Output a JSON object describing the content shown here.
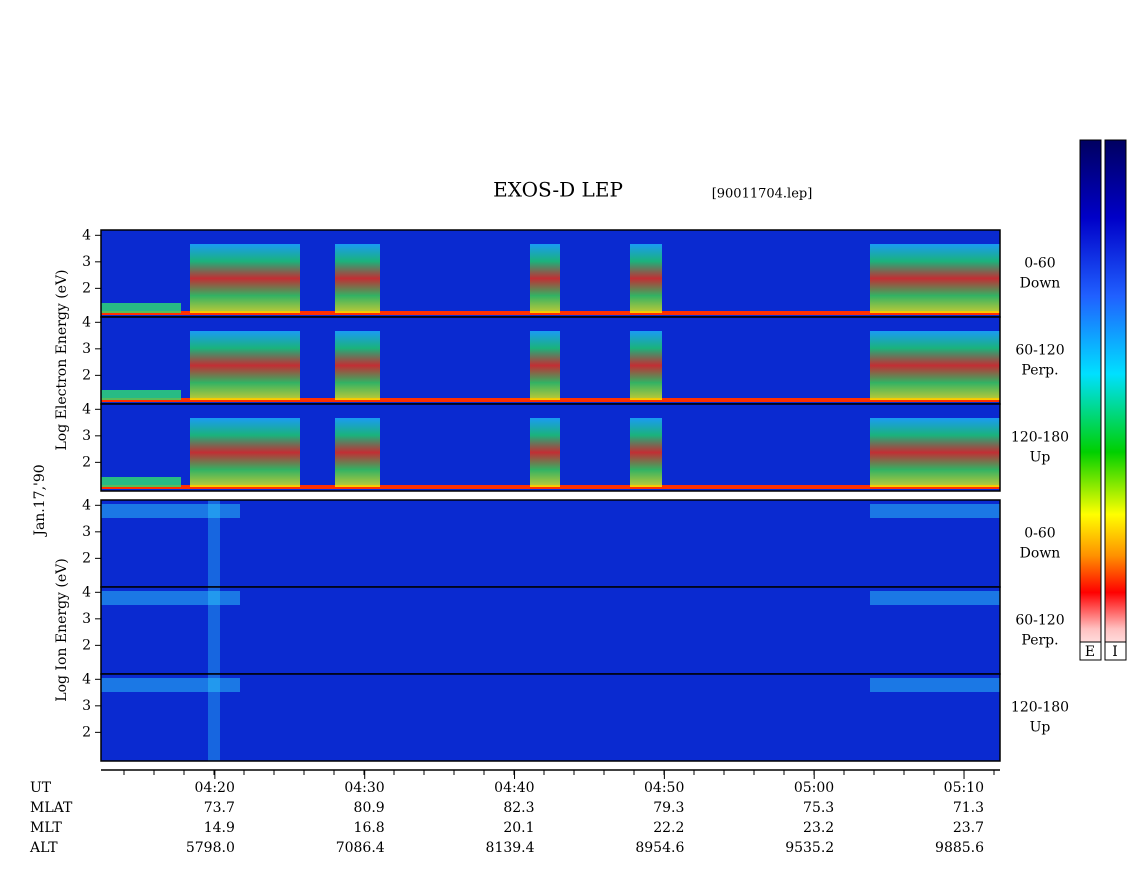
{
  "chart_data": {
    "type": "spectrogram",
    "title": "EXOS-D LEP",
    "subtitle": "[90011704.lep]",
    "date_label": "Jan.17,'90",
    "y_labels": [
      "Log Electron Energy (eV)",
      "Log Ion Energy (eV)"
    ],
    "xlim": [
      12.4,
      72.4
    ],
    "xticks": [
      {
        "value": 20,
        "label": "04:20"
      },
      {
        "value": 30,
        "label": "04:30"
      },
      {
        "value": 40,
        "label": "04:40"
      },
      {
        "value": 50,
        "label": "04:50"
      },
      {
        "value": 60,
        "label": "05:00"
      },
      {
        "value": 70,
        "label": "05:10"
      }
    ],
    "ylim": [
      0.92,
      4.2
    ],
    "yticks": [
      2,
      3,
      4
    ],
    "panels": [
      {
        "range": "0-60",
        "direction": "Down"
      },
      {
        "range": "60-120",
        "direction": "Perp."
      },
      {
        "range": "120-180",
        "direction": "Up"
      },
      {
        "range": "0-60",
        "direction": "Down"
      },
      {
        "range": "60-120",
        "direction": "Perp."
      },
      {
        "range": "120-180",
        "direction": "Up"
      }
    ],
    "colorbar_labels": [
      "E",
      "I"
    ]
  },
  "orbit_table": {
    "ut_label": "UT",
    "rows": [
      {
        "name": "MLAT",
        "values": [
          "73.7",
          "80.9",
          "82.3",
          "79.3",
          "75.3",
          "71.3"
        ]
      },
      {
        "name": "MLT",
        "values": [
          "14.9",
          "16.8",
          "20.1",
          "22.2",
          "23.2",
          "23.7"
        ]
      },
      {
        "name": "ALT",
        "values": [
          "5798.0",
          "7086.4",
          "8139.4",
          "8954.6",
          "9535.2",
          "9885.6"
        ]
      }
    ]
  }
}
